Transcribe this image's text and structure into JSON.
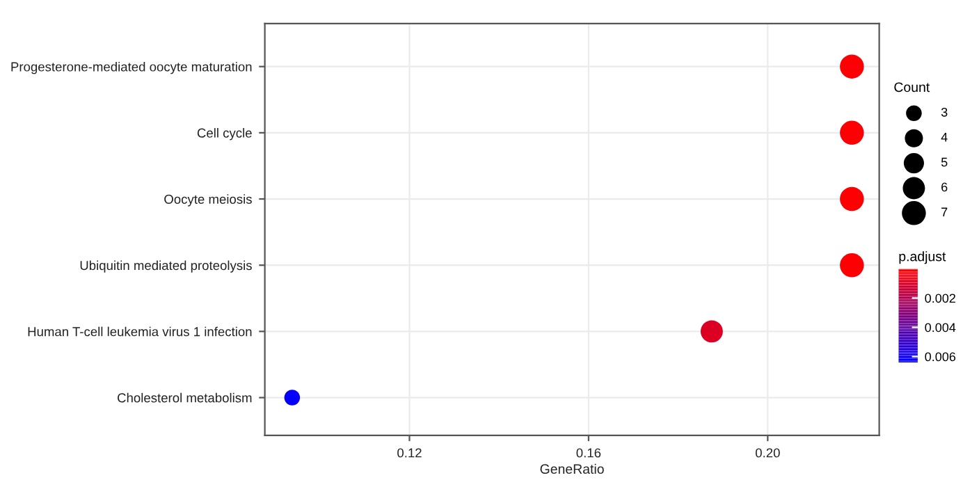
{
  "chart_data": {
    "type": "bubble",
    "orientation": "horizontal",
    "xlabel": "GeneRatio",
    "categories": [
      "Progesterone-mediated oocyte maturation",
      "Cell cycle",
      "Oocyte meiosis",
      "Ubiquitin mediated proteolysis",
      "Human T-cell leukemia virus 1 infection",
      "Cholesterol metabolism"
    ],
    "values": [
      0.2188,
      0.2188,
      0.2188,
      0.2188,
      0.1875,
      0.0938
    ],
    "sizes": [
      7,
      7,
      7,
      7,
      6,
      3
    ],
    "size_legend": [
      3,
      4,
      5,
      6,
      7
    ],
    "legend_title": "Count",
    "cvalues": [
      0.0001,
      0.0001,
      0.0001,
      0.0001,
      0.0009,
      0.0063
    ],
    "clabel": "p.adjust",
    "clim": [
      0.0064,
      0.0
    ],
    "cticks": [
      0.002,
      0.004,
      0.006
    ],
    "xlim": [
      0.0877,
      0.2249
    ],
    "xticks": [
      0.12,
      0.16,
      {
        "value": 0.2,
        "label": "0.20"
      }
    ],
    "grid": true
  }
}
